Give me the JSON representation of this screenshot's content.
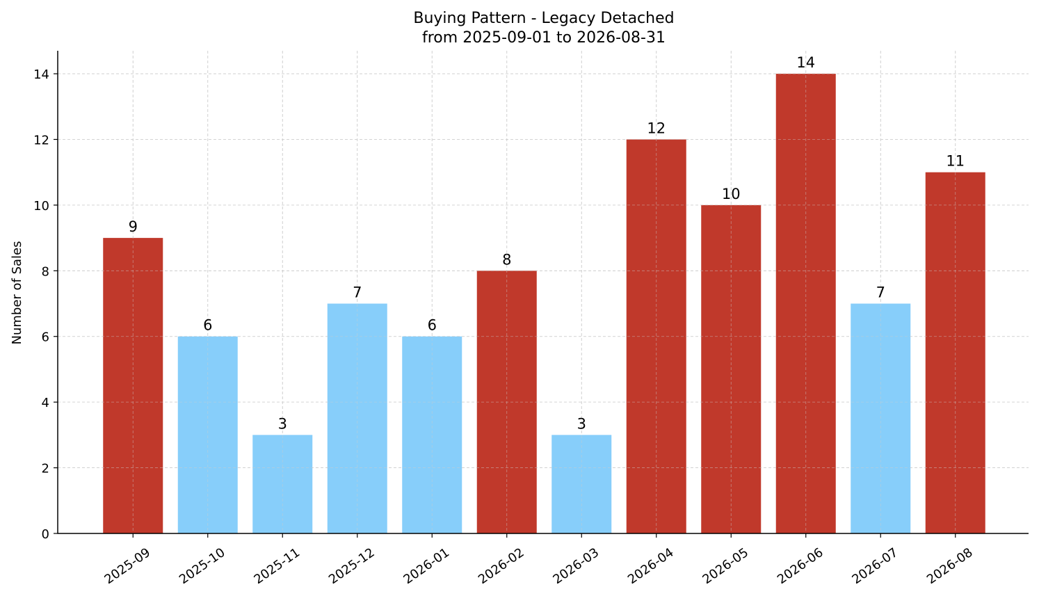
{
  "chart_data": {
    "type": "bar",
    "title": "Buying Pattern - Legacy Detached",
    "subtitle": "from 2025-09-01 to 2026-08-31",
    "xlabel": "",
    "ylabel": "Number of Sales",
    "categories": [
      "2025-09",
      "2025-10",
      "2025-11",
      "2025-12",
      "2026-01",
      "2026-02",
      "2026-03",
      "2026-04",
      "2026-05",
      "2026-06",
      "2026-07",
      "2026-08"
    ],
    "values": [
      9,
      6,
      3,
      7,
      6,
      8,
      3,
      12,
      10,
      14,
      7,
      11
    ],
    "bar_colors": [
      "#c0392b",
      "#87cefa",
      "#87cefa",
      "#87cefa",
      "#87cefa",
      "#c0392b",
      "#87cefa",
      "#c0392b",
      "#c0392b",
      "#c0392b",
      "#87cefa",
      "#c0392b"
    ],
    "ylim": [
      0,
      14.7
    ],
    "yticks": [
      0,
      2,
      4,
      6,
      8,
      10,
      12,
      14
    ],
    "grid": true,
    "legend": "none",
    "axis_color": "#000000",
    "grid_color": "#cccccc"
  }
}
